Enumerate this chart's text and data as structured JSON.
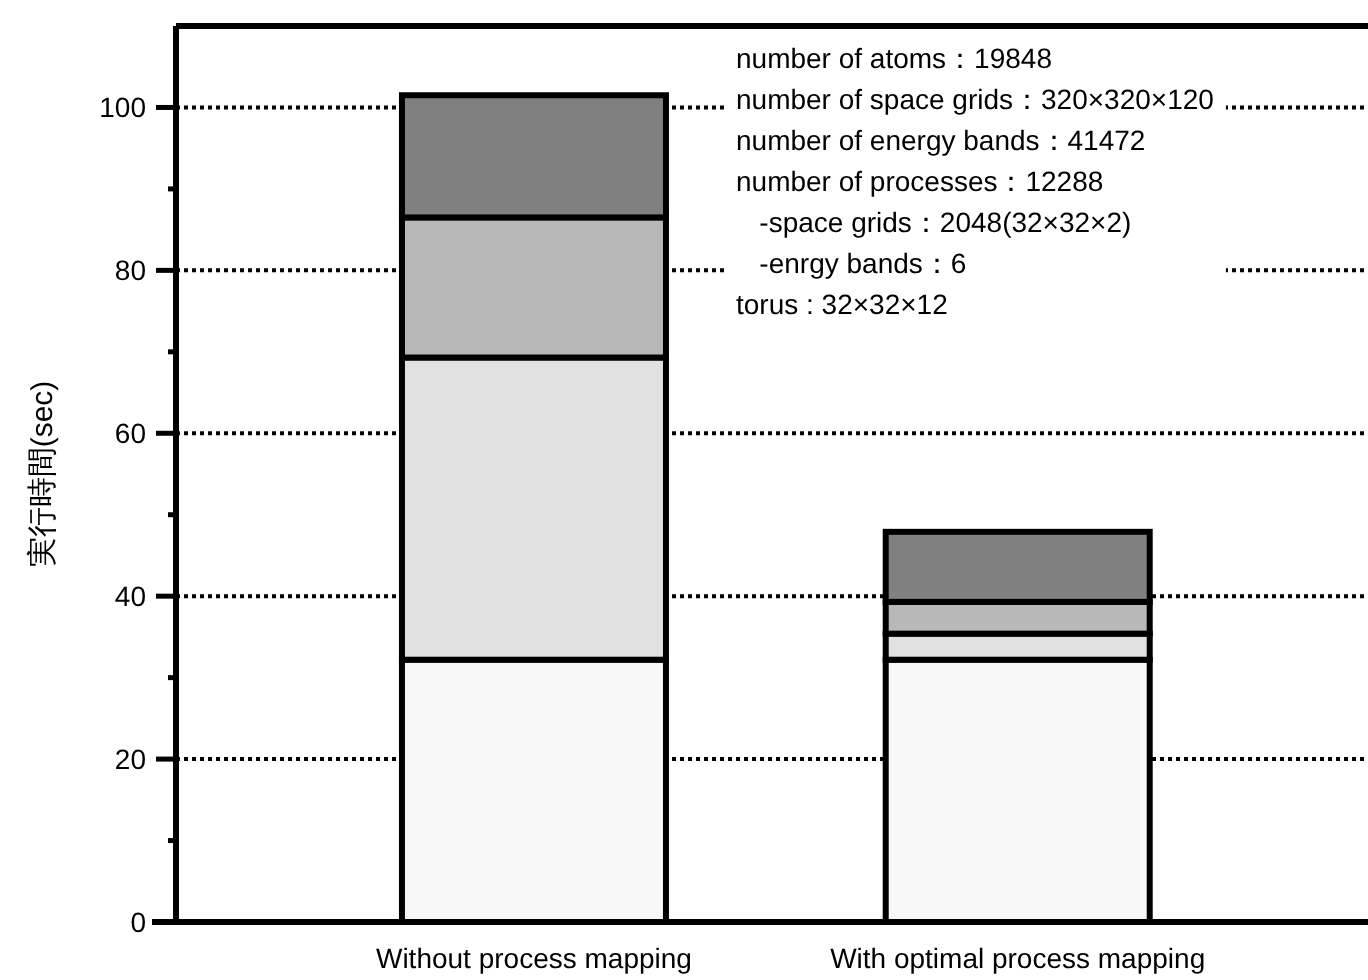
{
  "chart_data": {
    "type": "bar",
    "stacked": true,
    "ylabel": "実行時間(sec)",
    "categories": [
      "Without process mapping",
      "With optimal process mapping"
    ],
    "series": [
      {
        "color": "#f8f8f8",
        "values": [
          32.2,
          32.2
        ]
      },
      {
        "color": "#e0e1e0",
        "values": [
          37.1,
          3.2
        ]
      },
      {
        "color": "#b8b8b8",
        "values": [
          17.2,
          3.9
        ]
      },
      {
        "color": "#808080",
        "values": [
          15.0,
          8.6
        ]
      }
    ],
    "ylim": [
      0,
      110
    ],
    "yticks": [
      0,
      {
        "value": 10,
        "label": null
      },
      20,
      {
        "value": 30,
        "label": null
      },
      40,
      {
        "value": 50,
        "label": null
      },
      60,
      {
        "value": 70,
        "label": null
      },
      80,
      {
        "value": 90,
        "label": null
      },
      100
    ],
    "grid": "y",
    "annotations": [
      "number of atoms：19848",
      "number of space grids：320×320×120",
      "number of energy bands：41472",
      "number of processes：12288",
      "   -space grids：2048(32×32×2)",
      "   -enrgy bands：6",
      "torus : 32×32×12"
    ]
  }
}
